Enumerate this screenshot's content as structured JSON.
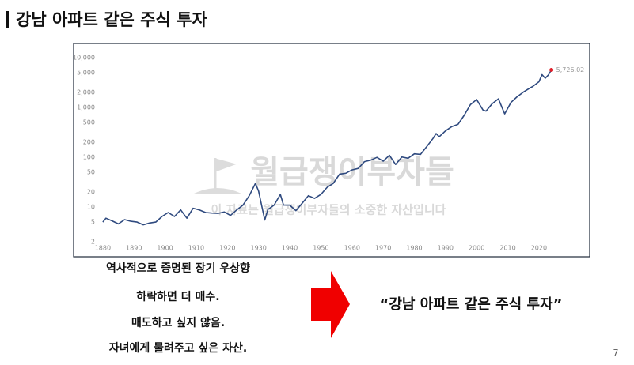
{
  "header": {
    "title": "강남 아파트 같은 주식 투자"
  },
  "chart_data": {
    "type": "line",
    "log_scale": true,
    "color": "#2f4a7f",
    "end_point_color": "#e0202a",
    "x": [
      1880,
      1881,
      1883,
      1885,
      1887,
      1889,
      1891,
      1893,
      1895,
      1897,
      1899,
      1901,
      1903,
      1905,
      1907,
      1909,
      1911,
      1913,
      1915,
      1917,
      1919,
      1921,
      1923,
      1925,
      1927,
      1929,
      1930,
      1932,
      1933,
      1935,
      1937,
      1938,
      1940,
      1942,
      1944,
      1946,
      1948,
      1950,
      1952,
      1954,
      1956,
      1958,
      1960,
      1962,
      1964,
      1966,
      1968,
      1970,
      1972,
      1974,
      1976,
      1978,
      1980,
      1982,
      1984,
      1986,
      1987,
      1988,
      1990,
      1992,
      1994,
      1996,
      1998,
      2000,
      2002,
      2003,
      2005,
      2007,
      2009,
      2011,
      2013,
      2015,
      2017,
      2018,
      2020,
      2021,
      2022,
      2023,
      2024
    ],
    "values": [
      5.0,
      6.0,
      5.3,
      4.6,
      5.6,
      5.2,
      5.0,
      4.4,
      4.8,
      5.0,
      6.5,
      7.8,
      6.5,
      8.8,
      6.0,
      9.5,
      8.8,
      7.8,
      7.6,
      7.5,
      8.0,
      6.8,
      8.8,
      11,
      17,
      30,
      21,
      5.5,
      9,
      11,
      18,
      11,
      11,
      8.5,
      12,
      17,
      15,
      18,
      25,
      30,
      46,
      48,
      56,
      60,
      82,
      88,
      100,
      84,
      110,
      72,
      102,
      96,
      118,
      115,
      165,
      240,
      300,
      260,
      340,
      415,
      460,
      700,
      1150,
      1450,
      900,
      850,
      1200,
      1500,
      750,
      1270,
      1650,
      2050,
      2450,
      2650,
      3300,
      4600,
      3900,
      4500,
      5726.02
    ],
    "value_labels": [
      null,
      null,
      null,
      null,
      null,
      null,
      null,
      null,
      null,
      null,
      null,
      null,
      null,
      null,
      null,
      null,
      null,
      null,
      null,
      null,
      null,
      null,
      null,
      null,
      null,
      null,
      null,
      null,
      null,
      null,
      null,
      null,
      null,
      null,
      null,
      null,
      null,
      null,
      null,
      null,
      null,
      null,
      null,
      null,
      null,
      null,
      null,
      null,
      null,
      null,
      null,
      null,
      null,
      null,
      null,
      null,
      null,
      null,
      null,
      null,
      null,
      null,
      null,
      null,
      null,
      null,
      null,
      null,
      null,
      null,
      null,
      null,
      null,
      null,
      null,
      null,
      null,
      null,
      "5,726.02"
    ],
    "xlim": [
      1878,
      2034
    ],
    "xticks": [
      1880,
      1890,
      1900,
      1910,
      1920,
      1930,
      1940,
      1950,
      1960,
      1970,
      1980,
      1990,
      2000,
      2010,
      2020
    ],
    "ylim": [
      1.3,
      13500
    ],
    "yticks": [
      {
        "value": 10000,
        "label": "10,000"
      },
      {
        "value": 5000,
        "label": "5,000"
      },
      {
        "value": 2000,
        "label": "2,000"
      },
      {
        "value": 1000,
        "label": "1,000"
      },
      500,
      200,
      100,
      50,
      20,
      10,
      5,
      2
    ]
  },
  "watermark": {
    "brand": "월급쟁이부자들",
    "note": "이 자료는 월급쟁이부자들의 소중한 자산입니다"
  },
  "notes": [
    "역사적으로 증명된 장기 우상향",
    "하락하면 더 매수.",
    "매도하고 싶지 않음.",
    "자녀에게 물려주고 싶은 자산."
  ],
  "callout": "“강남 아파트 같은 주식 투자”",
  "page_number": 7
}
